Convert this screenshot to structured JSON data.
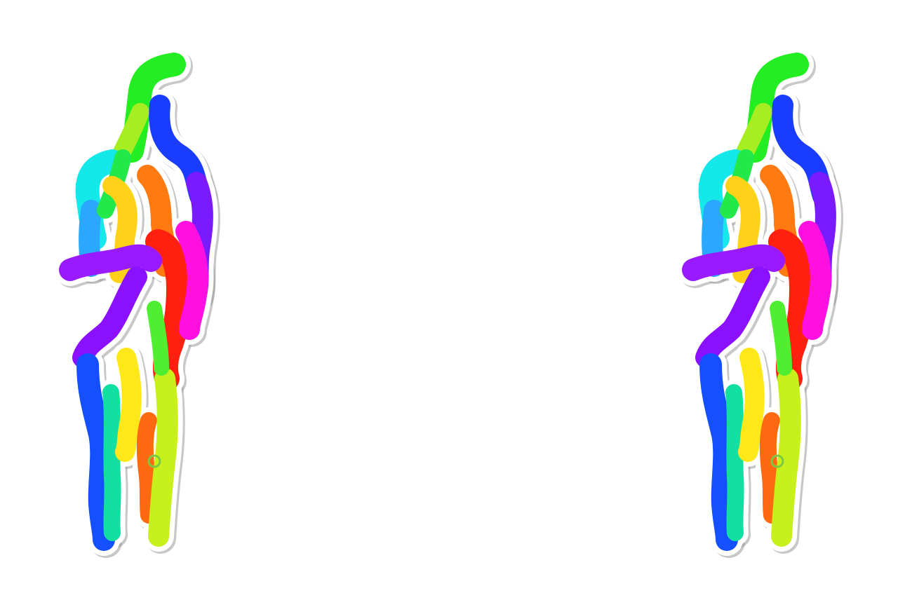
{
  "scene": {
    "background": "#ffffff",
    "figures": [
      {
        "side": "left"
      },
      {
        "side": "right"
      }
    ],
    "outline_color": "#ffffff",
    "shadow_color": "#9a9a9a",
    "marker_color": "#7ac943",
    "strokes": [
      {
        "name": "green-top-stroke",
        "color": "#22ee22"
      },
      {
        "name": "lime-top-stroke",
        "color": "#a6ee22"
      },
      {
        "name": "blue-right-stroke",
        "color": "#1a3cff"
      },
      {
        "name": "violet-right-stroke",
        "color": "#7a1aff"
      },
      {
        "name": "cyan-left-stroke",
        "color": "#14e8e8"
      },
      {
        "name": "sky-left-stroke",
        "color": "#2aa8ff"
      },
      {
        "name": "green-mid-stroke",
        "color": "#22e84a"
      },
      {
        "name": "yellow-mid-stroke",
        "color": "#ffd21a"
      },
      {
        "name": "orange-mid-stroke",
        "color": "#ff7a10"
      },
      {
        "name": "red-mid-stroke",
        "color": "#ff2010"
      },
      {
        "name": "magenta-stroke",
        "color": "#ff10e0"
      },
      {
        "name": "purple-left-stroke",
        "color": "#9a1aff"
      },
      {
        "name": "violet-lower-stroke",
        "color": "#8a10ff"
      },
      {
        "name": "blue-leg-stroke",
        "color": "#1450ff"
      },
      {
        "name": "teal-leg-stroke",
        "color": "#12e0a0"
      },
      {
        "name": "yellow-leg-stroke",
        "color": "#ffe81a"
      },
      {
        "name": "orange-leg-stroke",
        "color": "#ff6a10"
      },
      {
        "name": "lime-leg-stroke",
        "color": "#c8f01a"
      },
      {
        "name": "green-leg-stroke",
        "color": "#50ee30"
      }
    ]
  }
}
